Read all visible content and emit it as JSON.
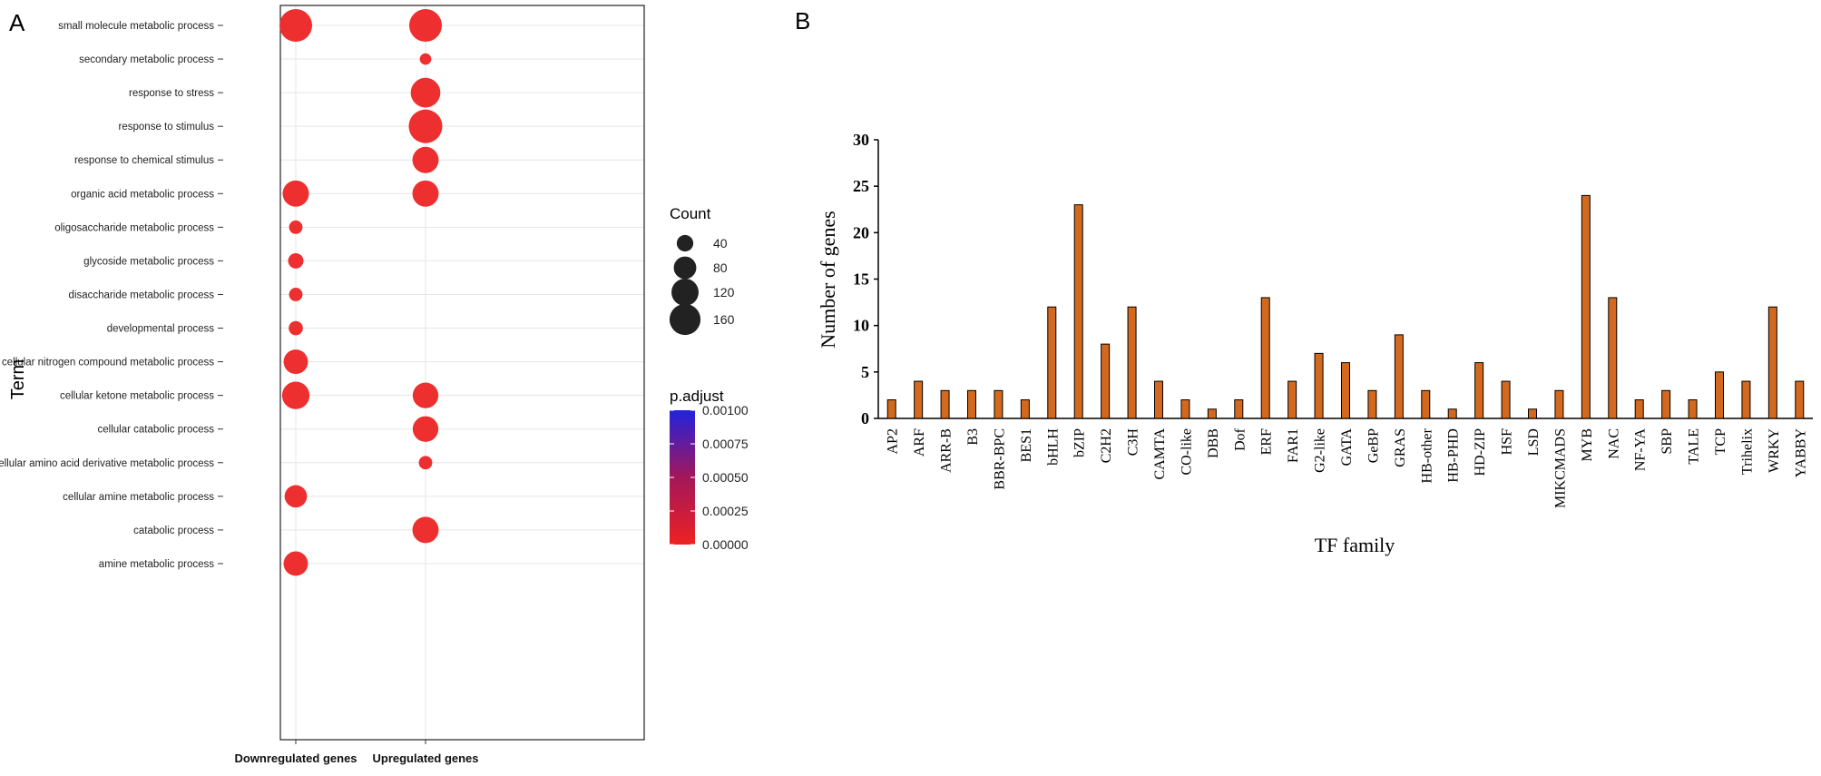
{
  "chart_data": [
    {
      "panel_label": "A",
      "type": "scatter",
      "subtype": "dot-plot",
      "title": "",
      "xlabel": "",
      "ylabel": "Term",
      "categories_x": [
        "Downregulated genes",
        "Upregulated genes"
      ],
      "terms": [
        "small molecule metabolic process",
        "secondary metabolic process",
        "response to stress",
        "response to stimulus",
        "response to chemical stimulus",
        "organic acid metabolic process",
        "oligosaccharide metabolic process",
        "glycoside metabolic process",
        "disaccharide metabolic process",
        "developmental process",
        "cellular nitrogen compound metabolic process",
        "cellular ketone metabolic process",
        "cellular catabolic process",
        "cellular amino acid derivative metabolic process",
        "cellular amine metabolic process",
        "catabolic process",
        "amine metabolic process"
      ],
      "points": [
        {
          "term": "small molecule metabolic process",
          "group": "Downregulated genes",
          "count": 160,
          "p_adjust": 0.0
        },
        {
          "term": "small molecule metabolic process",
          "group": "Upregulated genes",
          "count": 160,
          "p_adjust": 0.0
        },
        {
          "term": "secondary metabolic process",
          "group": "Upregulated genes",
          "count": 15,
          "p_adjust": 0.0
        },
        {
          "term": "response to stress",
          "group": "Upregulated genes",
          "count": 130,
          "p_adjust": 0.0
        },
        {
          "term": "response to stimulus",
          "group": "Upregulated genes",
          "count": 170,
          "p_adjust": 0.0
        },
        {
          "term": "response to chemical stimulus",
          "group": "Upregulated genes",
          "count": 100,
          "p_adjust": 0.0
        },
        {
          "term": "organic acid metabolic process",
          "group": "Downregulated genes",
          "count": 100,
          "p_adjust": 0.0
        },
        {
          "term": "organic acid metabolic process",
          "group": "Upregulated genes",
          "count": 100,
          "p_adjust": 0.0
        },
        {
          "term": "oligosaccharide metabolic process",
          "group": "Downregulated genes",
          "count": 22,
          "p_adjust": 0.0
        },
        {
          "term": "glycoside metabolic process",
          "group": "Downregulated genes",
          "count": 30,
          "p_adjust": 0.0
        },
        {
          "term": "disaccharide metabolic process",
          "group": "Downregulated genes",
          "count": 22,
          "p_adjust": 0.0
        },
        {
          "term": "developmental process",
          "group": "Downregulated genes",
          "count": 25,
          "p_adjust": 0.0
        },
        {
          "term": "cellular nitrogen compound metabolic process",
          "group": "Downregulated genes",
          "count": 85,
          "p_adjust": 0.0
        },
        {
          "term": "cellular ketone metabolic process",
          "group": "Downregulated genes",
          "count": 110,
          "p_adjust": 0.0
        },
        {
          "term": "cellular ketone metabolic process",
          "group": "Upregulated genes",
          "count": 95,
          "p_adjust": 0.0
        },
        {
          "term": "cellular catabolic process",
          "group": "Upregulated genes",
          "count": 95,
          "p_adjust": 0.0
        },
        {
          "term": "cellular amino acid derivative metabolic process",
          "group": "Upregulated genes",
          "count": 22,
          "p_adjust": 0.0
        },
        {
          "term": "cellular amine metabolic process",
          "group": "Downregulated genes",
          "count": 70,
          "p_adjust": 0.0
        },
        {
          "term": "catabolic process",
          "group": "Upregulated genes",
          "count": 100,
          "p_adjust": 0.0
        },
        {
          "term": "amine metabolic process",
          "group": "Downregulated genes",
          "count": 85,
          "p_adjust": 0.0
        }
      ],
      "legend_count": {
        "title": "Count",
        "values": [
          40,
          80,
          120,
          160
        ]
      },
      "legend_color": {
        "title": "p.adjust",
        "ticks": [
          "0.00100",
          "0.00075",
          "0.00050",
          "0.00025",
          "0.00000"
        ],
        "range": [
          0.0,
          0.001
        ],
        "color_low": "#ee2222",
        "color_high": "#2222dd"
      },
      "grid": true,
      "point_color": "#ee2f2f"
    },
    {
      "panel_label": "B",
      "type": "bar",
      "title": "",
      "xlabel": "TF family",
      "ylabel": "Number of genes",
      "ylim": [
        0,
        30
      ],
      "yticks": [
        0,
        5,
        10,
        15,
        20,
        25,
        30
      ],
      "categories": [
        "AP2",
        "ARF",
        "ARR-B",
        "B3",
        "BBR-BPC",
        "BES1",
        "bHLH",
        "bZIP",
        "C2H2",
        "C3H",
        "CAMTA",
        "CO-like",
        "DBB",
        "Dof",
        "ERF",
        "FAR1",
        "G2-like",
        "GATA",
        "GeBP",
        "GRAS",
        "HB-other",
        "HB-PHD",
        "HD-ZIP",
        "HSF",
        "LSD",
        "MIKCMADS",
        "MYB",
        "NAC",
        "NF-YA",
        "SBP",
        "TALE",
        "TCP",
        "Trihelix",
        "WRKY",
        "YABBY"
      ],
      "values": [
        2,
        4,
        3,
        3,
        3,
        2,
        12,
        23,
        8,
        12,
        4,
        2,
        1,
        2,
        13,
        4,
        7,
        6,
        3,
        9,
        3,
        1,
        6,
        4,
        1,
        3,
        24,
        13,
        2,
        3,
        2,
        5,
        4,
        12,
        4
      ],
      "bar_color": "#d2691e",
      "grid": false
    }
  ]
}
